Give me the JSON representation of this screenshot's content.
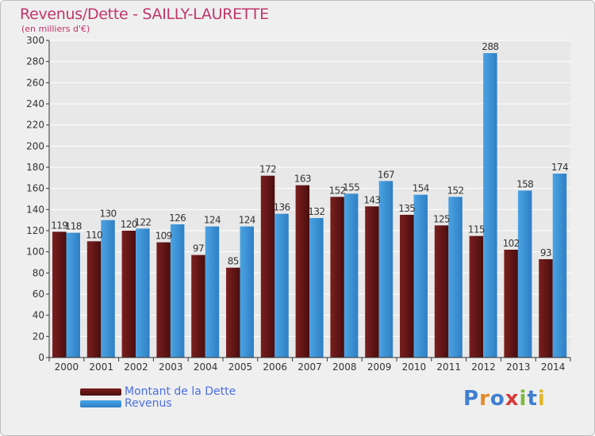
{
  "header": {
    "title": "Revenus/Dette - SAILLY-LAURETTE",
    "subtitle": "(en milliers d'€)"
  },
  "legend": {
    "dette_label": "Montant de la Dette",
    "revenus_label": "Revenus"
  },
  "logo": {
    "text": "Proxiti"
  },
  "colors": {
    "dette": "#7a1f1f",
    "dette_dark": "#4a0e0e",
    "revenus": "#4aa3e3",
    "revenus_dark": "#2f7fc4",
    "grid": "#ffffff",
    "axis": "#333333"
  },
  "chart_data": {
    "type": "bar",
    "title": "Revenus/Dette - SAILLY-LAURETTE",
    "ylabel": "(en milliers d'€)",
    "ylim": [
      0,
      300
    ],
    "ytick_step": 20,
    "grid": true,
    "categories": [
      "2000",
      "2001",
      "2002",
      "2003",
      "2004",
      "2005",
      "2006",
      "2007",
      "2008",
      "2009",
      "2010",
      "2011",
      "2012",
      "2013",
      "2014"
    ],
    "series": [
      {
        "name": "Montant de la Dette",
        "values": [
          119,
          110,
          120,
          109,
          97,
          85,
          172,
          163,
          152,
          143,
          135,
          125,
          115,
          102,
          93
        ]
      },
      {
        "name": "Revenus",
        "values": [
          118,
          130,
          122,
          126,
          124,
          124,
          136,
          132,
          155,
          167,
          154,
          152,
          288,
          158,
          174
        ]
      }
    ]
  }
}
